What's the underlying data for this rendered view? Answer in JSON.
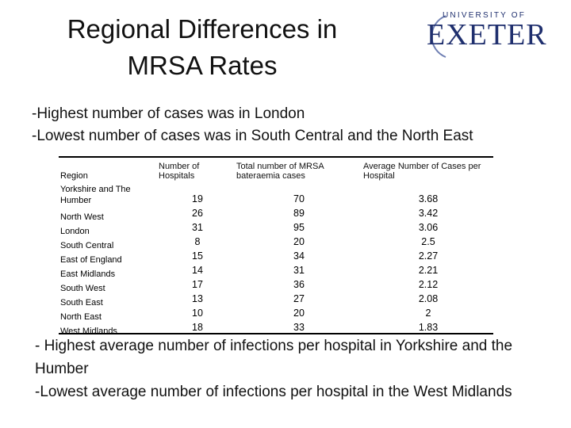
{
  "slide": {
    "title": "Regional Differences in MRSA Rates",
    "bullets": [
      "-Highest number of cases was in London",
      "-Lowest number of cases was in South Central and the North East"
    ],
    "footer_bullets": [
      "- Highest average number of infections per hospital in Yorkshire and the Humber",
      "-Lowest average number of infections per hospital in the West Midlands"
    ]
  },
  "logo": {
    "top_text": "UNIVERSITY OF",
    "main_text": "EXETER",
    "color": "#1f2f6e"
  },
  "table": {
    "headers": {
      "region": "Region",
      "hospitals": "Number of Hospitals",
      "cases": "Total number of MRSA bateraemia cases",
      "average": "Average Number of  Cases per Hospital"
    },
    "rows": [
      {
        "region": "Yorkshire and The Humber",
        "hospitals": "19",
        "cases": "70",
        "average": "3.68"
      },
      {
        "region": "North West",
        "hospitals": "26",
        "cases": "89",
        "average": "3.42"
      },
      {
        "region": "London",
        "hospitals": "31",
        "cases": "95",
        "average": "3.06"
      },
      {
        "region": "South Central",
        "hospitals": "8",
        "cases": "20",
        "average": "2.5"
      },
      {
        "region": "East of England",
        "hospitals": "15",
        "cases": "34",
        "average": "2.27"
      },
      {
        "region": "East Midlands",
        "hospitals": "14",
        "cases": "31",
        "average": "2.21"
      },
      {
        "region": "South West",
        "hospitals": "17",
        "cases": "36",
        "average": "2.12"
      },
      {
        "region": "South East",
        "hospitals": "13",
        "cases": "27",
        "average": "2.08"
      },
      {
        "region": "North East",
        "hospitals": "10",
        "cases": "20",
        "average": "2"
      },
      {
        "region": "West Midlands",
        "hospitals": "18",
        "cases": "33",
        "average": "1.83"
      }
    ]
  }
}
